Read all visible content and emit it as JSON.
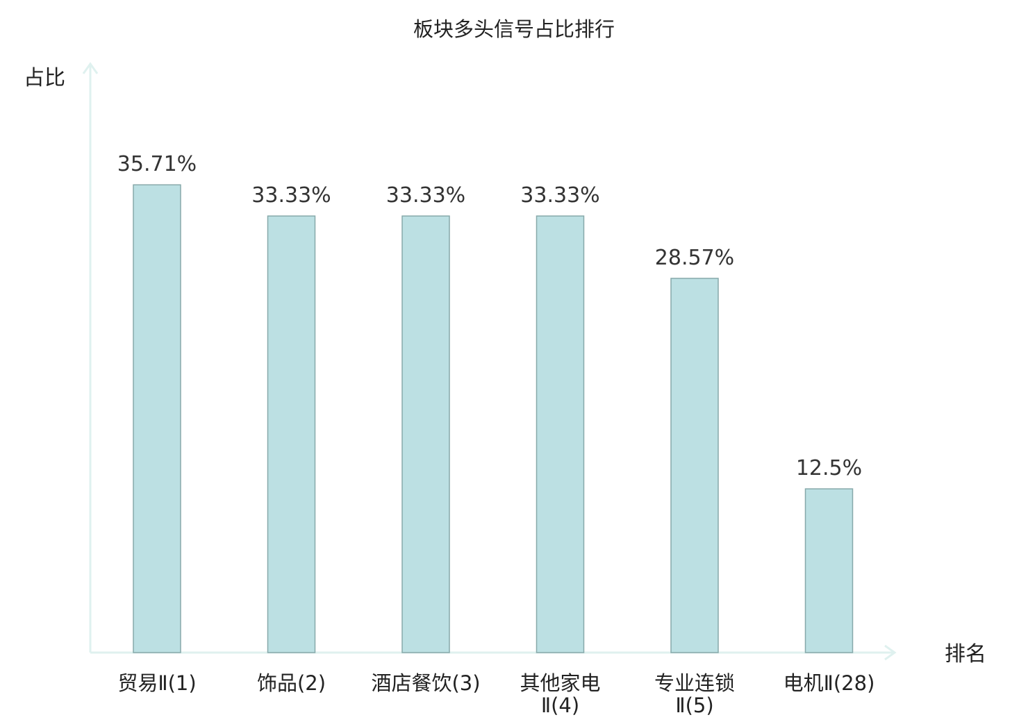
{
  "chart_data": {
    "type": "bar",
    "title": "板块多头信号占比排行",
    "ylabel": "占比",
    "xlabel": "排名",
    "ylim": [
      0,
      40
    ],
    "grid": false,
    "categories": [
      {
        "lines": [
          "贸易Ⅱ(1)"
        ],
        "highlight": false
      },
      {
        "lines": [
          "饰品(2)"
        ],
        "highlight": false
      },
      {
        "lines": [
          "酒店餐饮(3)"
        ],
        "highlight": false
      },
      {
        "lines": [
          "其他家电",
          "Ⅱ(4)"
        ],
        "highlight": false
      },
      {
        "lines": [
          "专业连锁",
          "Ⅱ(5)"
        ],
        "highlight": false
      },
      {
        "lines": [
          "电机Ⅱ(28)"
        ],
        "highlight": true
      }
    ],
    "values": [
      35.71,
      33.33,
      33.33,
      33.33,
      28.57,
      12.5
    ],
    "value_labels": [
      "35.71%",
      "33.33%",
      "33.33%",
      "33.33%",
      "28.57%",
      "12.5%"
    ],
    "colors": {
      "bar_fill": "#bce0e3",
      "bar_stroke": "#87a9aa",
      "axis": "#dff1ef",
      "highlight_text": "#e00000",
      "text": "#222222"
    }
  }
}
